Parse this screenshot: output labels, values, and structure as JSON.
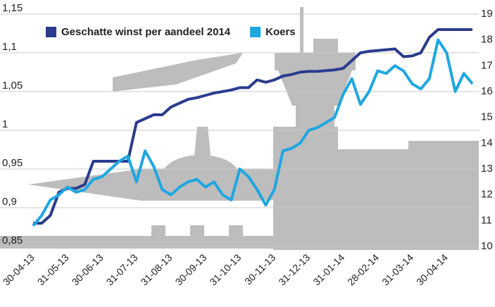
{
  "chart_data": {
    "type": "line",
    "categories": [
      "30-04-13",
      null,
      null,
      null,
      "31-05-13",
      null,
      null,
      null,
      "30-06-13",
      null,
      null,
      null,
      "31-07-13",
      null,
      null,
      null,
      "31-08-13",
      null,
      null,
      null,
      "30-09-13",
      null,
      null,
      null,
      "31-10-13",
      null,
      null,
      null,
      "30-11-13",
      null,
      null,
      null,
      "31-12-13",
      null,
      null,
      null,
      "31-01-14",
      null,
      null,
      null,
      "28-02-14",
      null,
      null,
      null,
      "31-03-14",
      null,
      null,
      null,
      "30-04-14",
      null,
      null,
      null
    ],
    "series": [
      {
        "name": "Geschatte winst per aandeel 2014",
        "color": "#2b3c8e",
        "axis": "y",
        "values": [
          0.88,
          0.88,
          0.89,
          0.92,
          0.925,
          0.925,
          0.93,
          0.96,
          0.96,
          0.96,
          0.96,
          0.96,
          1.01,
          1.015,
          1.02,
          1.02,
          1.03,
          1.035,
          1.04,
          1.042,
          1.045,
          1.048,
          1.05,
          1.052,
          1.055,
          1.055,
          1.065,
          1.062,
          1.065,
          1.07,
          1.072,
          1.075,
          1.076,
          1.076,
          1.077,
          1.078,
          1.08,
          1.09,
          1.1,
          1.102,
          1.103,
          1.104,
          1.105,
          1.095,
          1.096,
          1.1,
          1.12,
          1.13,
          1.13,
          1.13,
          1.13,
          1.13
        ]
      },
      {
        "name": "Koers",
        "color": "#1ea7e1",
        "axis": "y2",
        "values": [
          10.8,
          11.2,
          11.8,
          12.0,
          12.3,
          12.1,
          12.2,
          12.6,
          12.7,
          13.0,
          13.3,
          13.5,
          12.5,
          13.7,
          13.1,
          12.2,
          12.0,
          12.3,
          12.5,
          12.6,
          12.3,
          12.5,
          12.0,
          11.8,
          13.0,
          12.7,
          12.2,
          11.6,
          12.2,
          13.7,
          13.8,
          14.0,
          14.5,
          14.6,
          14.8,
          15.0,
          15.9,
          16.5,
          15.5,
          16.0,
          16.8,
          16.7,
          17.0,
          16.8,
          16.3,
          16.1,
          16.5,
          18.0,
          17.5,
          16.0,
          16.7,
          16.3
        ]
      }
    ],
    "ylim": [
      0.85,
      1.15
    ],
    "yticks": [
      {
        "value": 0.85,
        "label": "0,85"
      },
      {
        "value": 0.9,
        "label": "0,9"
      },
      {
        "value": 0.95,
        "label": "0,95"
      },
      1,
      {
        "value": 1.05,
        "label": "1,05"
      },
      {
        "value": 1.1,
        "label": "1,1"
      },
      {
        "value": 1.15,
        "label": "1,15"
      }
    ],
    "y2lim": [
      10,
      19
    ],
    "y2ticks": [
      10,
      11,
      12,
      13,
      14,
      15,
      16,
      17,
      18,
      19
    ],
    "grid": true,
    "legend": "top"
  }
}
